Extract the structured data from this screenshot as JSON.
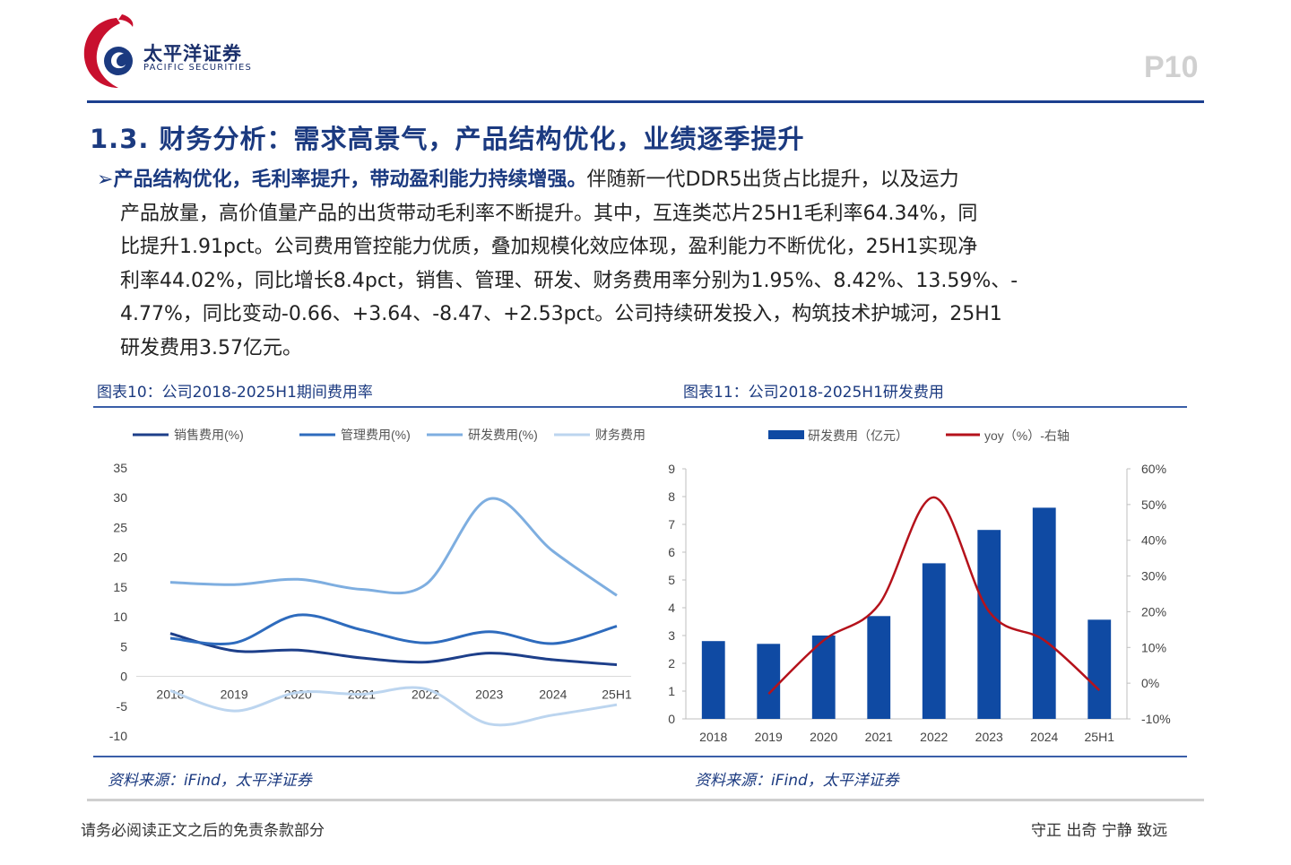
{
  "header": {
    "company_cn": "太平洋证券",
    "company_en": "PACIFIC SECURITIES",
    "page_number": "P10",
    "colors": {
      "brand_blue": "#1b3a80",
      "brand_red": "#c8102e"
    }
  },
  "section": {
    "title": "1.3. 财务分析：需求高景气，产品结构优化，业绩逐季提升"
  },
  "bullet": {
    "marker": "➢",
    "highlight": "产品结构优化，毛利率提升，带动盈利能力持续增强。",
    "lines": [
      "伴随新一代DDR5出货占比提升，以及运力",
      "产品放量，高价值量产品的出货带动毛利率不断提升。其中，互连类芯片25H1毛利率64.34%，同",
      "比提升1.91pct。公司费用管控能力优质，叠加规模化效应体现，盈利能力不断优化，25H1实现净",
      "利率44.02%，同比增长8.4pct，销售、管理、研发、财务费用率分别为1.95%、8.42%、13.59%、-",
      "4.77%，同比变动-0.66、+3.64、-8.47、+2.53pct。公司持续研发投入，构筑技术护城河，25H1",
      "研发费用3.57亿元。"
    ]
  },
  "figures": [
    {
      "title": "图表10：公司2018-2025H1期间费用率",
      "source": "资料来源：iFind，太平洋证券"
    },
    {
      "title": "图表11：公司2018-2025H1研发费用",
      "source": "资料来源：iFind，太平洋证券"
    }
  ],
  "chart_data": [
    {
      "type": "line",
      "categories": [
        "2018",
        "2019",
        "2020",
        "2021",
        "2022",
        "2023",
        "2024",
        "25H1"
      ],
      "series": [
        {
          "name": "销售费用(%)",
          "values": [
            7.2,
            4.3,
            4.4,
            3.1,
            2.4,
            3.9,
            2.8,
            1.95
          ],
          "color": "#1d3f8a"
        },
        {
          "name": "管理费用(%)",
          "values": [
            6.4,
            5.6,
            10.3,
            7.8,
            5.6,
            7.5,
            5.5,
            8.42
          ],
          "color": "#2e6bbd"
        },
        {
          "name": "研发费用(%)",
          "values": [
            15.8,
            15.4,
            16.3,
            14.6,
            15.4,
            29.8,
            21.0,
            13.59
          ],
          "color": "#7eaee0"
        },
        {
          "name": "财务费用(%)",
          "values": [
            -2.4,
            -5.8,
            -2.7,
            -3.0,
            -2.1,
            -8.0,
            -6.5,
            -4.77
          ],
          "color": "#bcd5ef"
        }
      ],
      "ylim": [
        -10,
        35
      ],
      "yticks": [
        "35",
        "30",
        "25",
        "20",
        "15",
        "10",
        "5",
        "0",
        "-5",
        "-10"
      ],
      "legend_position": "top",
      "grid": false
    },
    {
      "type": "bar",
      "categories": [
        "2018",
        "2019",
        "2020",
        "2021",
        "2022",
        "2023",
        "2024",
        "25H1"
      ],
      "series": [
        {
          "name": "研发费用（亿元）",
          "values": [
            2.8,
            2.7,
            3.0,
            3.7,
            5.6,
            6.8,
            7.6,
            3.57
          ],
          "color": "#0f4aa3",
          "axis": "left"
        },
        {
          "name": "yoy（%）-右轴",
          "values": [
            null,
            -3,
            12,
            22,
            52,
            20,
            12,
            -2
          ],
          "color": "#b5121b",
          "axis": "right",
          "type": "line"
        }
      ],
      "ylim_left": [
        0,
        9
      ],
      "yticks_left": [
        "9",
        "8",
        "7",
        "6",
        "5",
        "4",
        "3",
        "2",
        "1",
        "0"
      ],
      "ylim_right": [
        -10,
        60
      ],
      "yticks_right": [
        "60%",
        "50%",
        "40%",
        "30%",
        "20%",
        "10%",
        "0%",
        "-10%"
      ],
      "legend_position": "top",
      "grid": false
    }
  ],
  "footer": {
    "disclaimer": "请务必阅读正文之后的免责条款部分",
    "slogan": "守正 出奇 宁静 致远"
  }
}
